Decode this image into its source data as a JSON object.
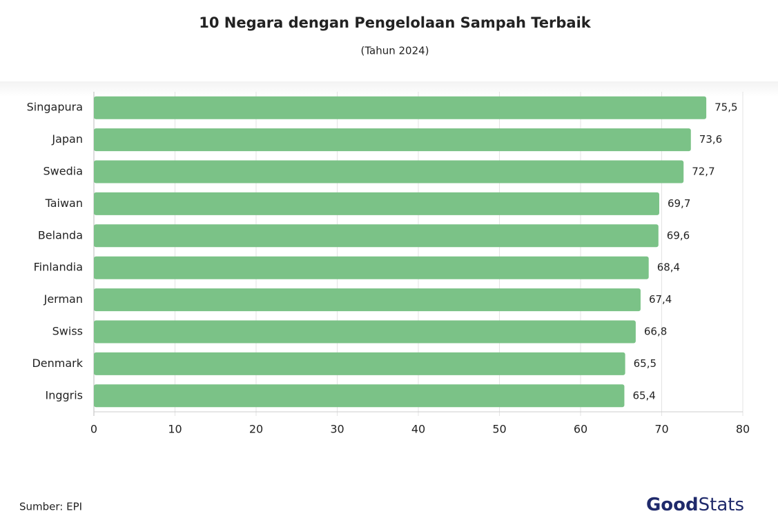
{
  "chart_data": {
    "type": "bar",
    "orientation": "horizontal",
    "title": "10 Negara dengan Pengelolaan Sampah Terbaik",
    "subtitle": "(Tahun 2024)",
    "categories": [
      "Singapura",
      "Japan",
      "Swedia",
      "Taiwan",
      "Belanda",
      "Finlandia",
      "Jerman",
      "Swiss",
      "Denmark",
      "Inggris"
    ],
    "values": [
      75.5,
      73.6,
      72.7,
      69.7,
      69.6,
      68.4,
      67.4,
      66.8,
      65.5,
      65.4
    ],
    "value_labels": [
      "75,5",
      "73,6",
      "72,7",
      "69,7",
      "69,6",
      "68,4",
      "67,4",
      "66,8",
      "65,5",
      "65,4"
    ],
    "color": "#7bc287",
    "xlim": [
      0,
      80
    ],
    "xticks": [
      0,
      10,
      20,
      30,
      40,
      50,
      60,
      70,
      80
    ],
    "grid": true,
    "source": "Sumber: EPI",
    "logo": [
      "Good",
      "Stats"
    ]
  }
}
